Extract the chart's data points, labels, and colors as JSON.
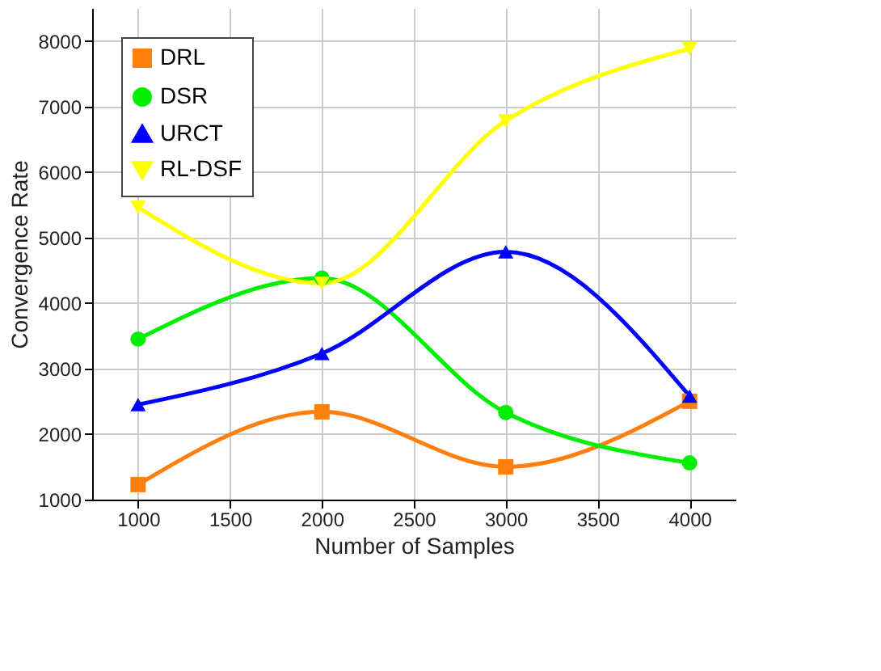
{
  "chart_data": {
    "type": "line",
    "xlabel": "Number of Samples",
    "ylabel": "Convergence Rate",
    "x": [
      1000,
      2000,
      3000,
      4000
    ],
    "series": [
      {
        "name": "DRL",
        "color": "#ff7f0e",
        "marker": "square",
        "values": [
          1230,
          2340,
          1500,
          2500
        ]
      },
      {
        "name": "DSR",
        "color": "#00ee00",
        "marker": "circle",
        "values": [
          3450,
          4380,
          2330,
          1560
        ]
      },
      {
        "name": "URCT",
        "color": "#0000ff",
        "marker": "triangle-up",
        "values": [
          2450,
          3230,
          4780,
          2580
        ]
      },
      {
        "name": "RL-DSF",
        "color": "#ffff00",
        "marker": "triangle-down",
        "values": [
          5460,
          4300,
          6780,
          7880
        ]
      }
    ],
    "xlim": [
      750,
      4250
    ],
    "xticks": [
      1000,
      1500,
      2000,
      2500,
      3000,
      3500,
      4000
    ],
    "ylim": [
      1000,
      8500
    ],
    "yticks": [
      1000,
      2000,
      3000,
      4000,
      5000,
      6000,
      7000,
      8000
    ],
    "grid": true,
    "legend": "top left",
    "line_style": "solid"
  }
}
